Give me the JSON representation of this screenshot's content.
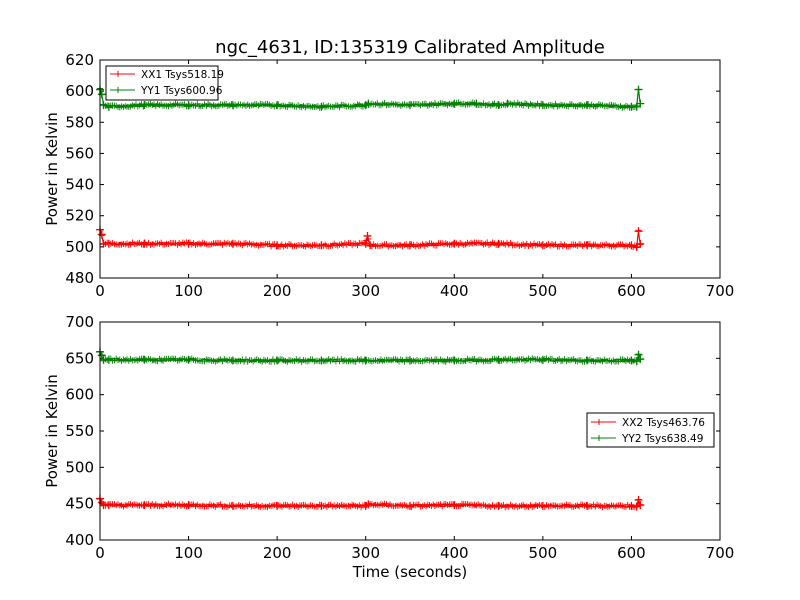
{
  "chart_data": [
    {
      "type": "line",
      "title": "ngc_4631, ID:135319 Calibrated Amplitude",
      "xlabel": "",
      "ylabel": "Power in Kelvin",
      "xlim": [
        0,
        700
      ],
      "ylim": [
        480,
        620
      ],
      "xticks": [
        0,
        100,
        200,
        300,
        400,
        500,
        600,
        700
      ],
      "yticks": [
        480,
        500,
        520,
        540,
        560,
        580,
        600,
        620
      ],
      "grid": false,
      "legend_position": "top-left",
      "series": [
        {
          "name": "XX1 Tsys518.19",
          "color": "#ff0000",
          "marker": "+",
          "x": [
            0,
            2,
            4,
            10,
            50,
            100,
            150,
            200,
            250,
            300,
            302,
            305,
            350,
            400,
            450,
            500,
            550,
            600,
            606,
            608,
            610
          ],
          "y": [
            511,
            508,
            502,
            502,
            502,
            502,
            502,
            501,
            501,
            502,
            507,
            501,
            501,
            502,
            502,
            501,
            501,
            501,
            500,
            510,
            502
          ]
        },
        {
          "name": "YY1 Tsys600.96",
          "color": "#008000",
          "marker": "+",
          "x": [
            0,
            2,
            4,
            10,
            50,
            100,
            150,
            200,
            250,
            300,
            303,
            350,
            400,
            425,
            450,
            460,
            500,
            550,
            600,
            606,
            608,
            610
          ],
          "y": [
            601,
            598,
            591,
            590,
            591,
            591,
            591,
            591,
            590,
            591,
            592,
            591,
            592,
            592,
            591,
            592,
            591,
            591,
            590,
            590,
            601,
            592
          ]
        }
      ]
    },
    {
      "type": "line",
      "title": "",
      "xlabel": "Time (seconds)",
      "ylabel": "Power in Kelvin",
      "xlim": [
        0,
        700
      ],
      "ylim": [
        400,
        700
      ],
      "xticks": [
        0,
        100,
        200,
        300,
        400,
        500,
        600,
        700
      ],
      "yticks": [
        400,
        450,
        500,
        550,
        600,
        650,
        700
      ],
      "grid": false,
      "legend_position": "center-right",
      "series": [
        {
          "name": "XX2 Tsys463.76",
          "color": "#ff0000",
          "marker": "+",
          "x": [
            0,
            2,
            4,
            10,
            50,
            100,
            150,
            200,
            250,
            300,
            303,
            350,
            400,
            450,
            500,
            550,
            600,
            606,
            608,
            610
          ],
          "y": [
            457,
            452,
            448,
            448,
            448,
            448,
            447,
            447,
            447,
            447,
            449,
            447,
            448,
            447,
            447,
            447,
            447,
            446,
            455,
            448
          ]
        },
        {
          "name": "YY2 Tsys638.49",
          "color": "#008000",
          "marker": "+",
          "x": [
            0,
            2,
            4,
            10,
            50,
            100,
            150,
            200,
            250,
            300,
            350,
            400,
            450,
            500,
            550,
            600,
            606,
            608,
            610
          ],
          "y": [
            659,
            654,
            648,
            648,
            648,
            648,
            647,
            647,
            647,
            647,
            647,
            647,
            648,
            648,
            647,
            647,
            646,
            655,
            649
          ]
        }
      ]
    }
  ]
}
